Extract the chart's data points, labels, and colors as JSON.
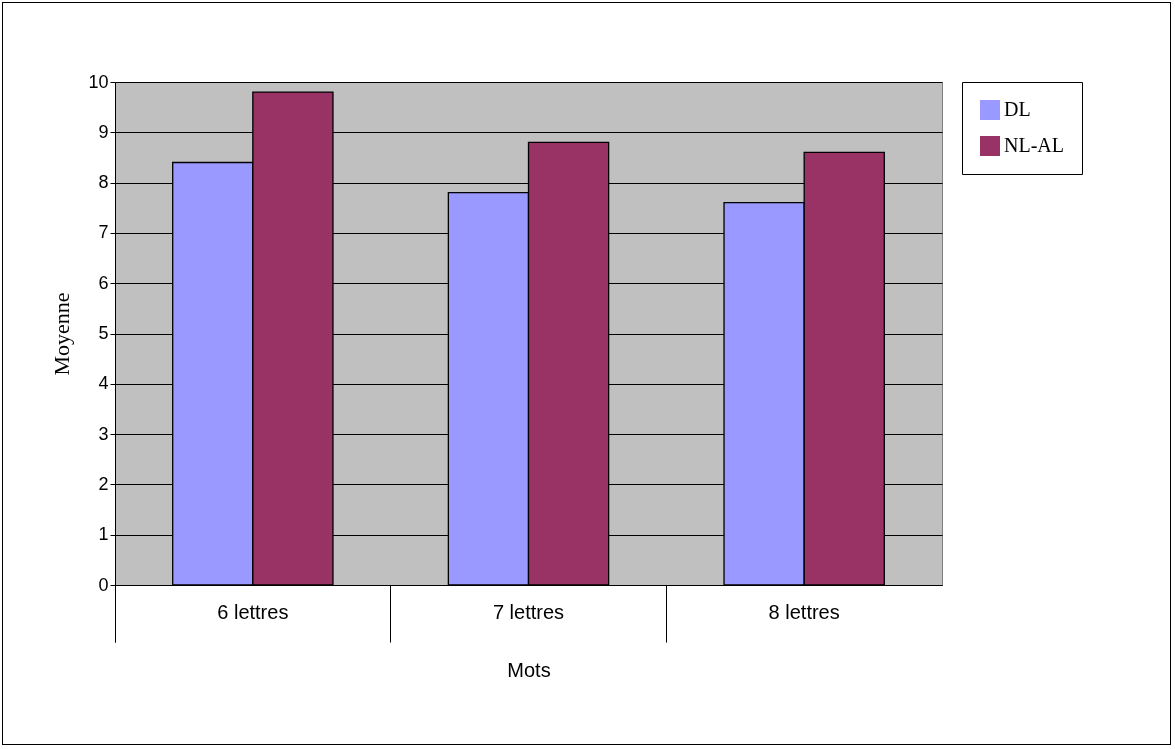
{
  "chart_data": {
    "type": "bar",
    "xlabel": "Mots",
    "ylabel": "Moyenne",
    "categories": [
      "6 lettres",
      "7 lettres",
      "8 lettres"
    ],
    "series": [
      {
        "name": "DL",
        "color": "#9999ff",
        "values": [
          8.4,
          7.8,
          7.6
        ]
      },
      {
        "name": "NL-AL",
        "color": "#993366",
        "values": [
          9.8,
          8.8,
          8.6
        ]
      }
    ],
    "ylim": [
      0,
      10
    ],
    "yticks": [
      0,
      1,
      2,
      3,
      4,
      5,
      6,
      7,
      8,
      9,
      10
    ],
    "grid": "y",
    "legend": "right"
  }
}
